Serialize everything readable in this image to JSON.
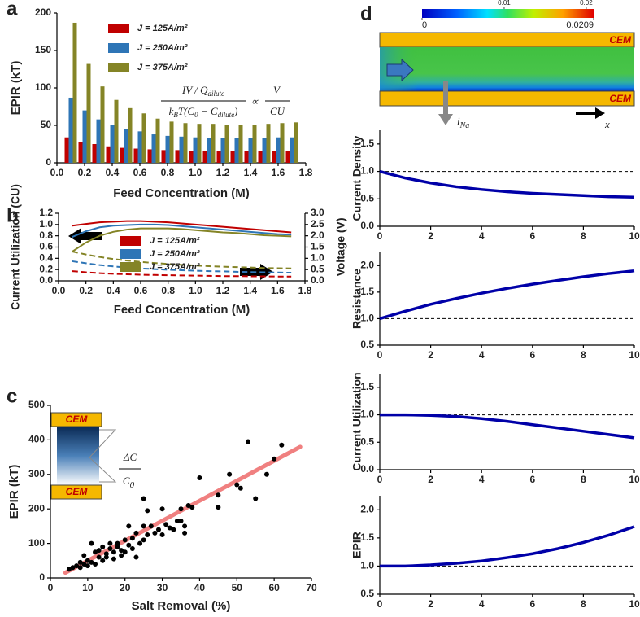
{
  "chart_data": [
    {
      "type": "bar",
      "label": "a",
      "ylabel": "EPIR (kT)",
      "xlabel": "Feed Concentration (M)",
      "x": [
        0.1,
        0.2,
        0.3,
        0.4,
        0.5,
        0.6,
        0.7,
        0.8,
        0.9,
        1.0,
        1.1,
        1.2,
        1.3,
        1.4,
        1.5,
        1.6,
        1.7
      ],
      "xlim": [
        0,
        1.8
      ],
      "xticks": [
        {
          "value": 0,
          "label": "0.0"
        },
        0.2,
        0.4,
        0.6,
        0.8,
        {
          "value": 1,
          "label": "1.0"
        },
        1.2,
        1.4,
        1.6,
        1.8
      ],
      "ylim": [
        0,
        200
      ],
      "yticks": [
        0,
        50,
        100,
        150,
        200
      ],
      "legend": "upper right",
      "series": [
        {
          "name": "J = 125A/m²",
          "color": "#c00000",
          "values": [
            34,
            28,
            25,
            22,
            20,
            19,
            18,
            17,
            17,
            16,
            16,
            16,
            16,
            16,
            16,
            16,
            16
          ]
        },
        {
          "name": "J = 250A/m²",
          "color": "#2e75b6",
          "values": [
            87,
            70,
            58,
            50,
            45,
            42,
            38,
            36,
            35,
            34,
            33,
            33,
            33,
            33,
            33,
            34,
            34
          ]
        },
        {
          "name": "J = 375A/m²",
          "color": "#848426",
          "values": [
            187,
            132,
            102,
            84,
            73,
            66,
            59,
            55,
            53,
            52,
            52,
            51,
            51,
            51,
            52,
            53,
            54
          ]
        }
      ],
      "equation": {
        "num": "IV / Q",
        "num_sub": "dilute",
        "den_k": "k",
        "den_k_sub": "B",
        "den_mid": "T(C",
        "den_c0_sub": "0",
        "den_minus": " − C",
        "den_cd_sub": "dilute",
        "den_close": ")",
        "prop": "∝",
        "rhs_num": "V",
        "rhs_den": "CU"
      }
    },
    {
      "type": "line",
      "label": "b",
      "ylabel": "Current Utilization (CU)",
      "y2label": "Voltage (V)",
      "xlabel": "Feed Concentration (M)",
      "x": [
        0.1,
        0.2,
        0.3,
        0.4,
        0.5,
        0.6,
        0.7,
        0.8,
        0.9,
        1.0,
        1.1,
        1.2,
        1.3,
        1.4,
        1.5,
        1.6,
        1.7
      ],
      "xlim": [
        0,
        1.8
      ],
      "xticks": [
        {
          "value": 0,
          "label": "0.0"
        },
        0.2,
        0.4,
        0.6,
        0.8,
        {
          "value": 1,
          "label": "1.0"
        },
        1.2,
        1.4,
        1.6,
        1.8
      ],
      "ylim": [
        0,
        1.2
      ],
      "yticks": [
        {
          "value": 0,
          "label": "0.0"
        },
        0.2,
        0.4,
        0.6,
        0.8,
        {
          "value": 1,
          "label": "1.0"
        },
        1.2
      ],
      "y2lim": [
        0,
        3
      ],
      "y2ticks": [
        {
          "value": 0,
          "label": "0.0"
        },
        0.5,
        {
          "value": 1,
          "label": "1.0"
        },
        1.5,
        {
          "value": 2,
          "label": "2.0"
        },
        2.5,
        {
          "value": 3,
          "label": "3.0"
        }
      ],
      "series": [
        {
          "name": "J = 125A/m²",
          "color": "#c00000",
          "values": [
            0.98,
            1.01,
            1.04,
            1.05,
            1.06,
            1.06,
            1.05,
            1.04,
            1.02,
            1.0,
            0.98,
            0.96,
            0.94,
            0.92,
            0.9,
            0.88,
            0.86
          ]
        },
        {
          "name": "J = 250A/m²",
          "color": "#2e75b6",
          "values": [
            0.78,
            0.88,
            0.95,
            0.98,
            0.99,
            1.0,
            1.0,
            0.99,
            0.97,
            0.95,
            0.93,
            0.91,
            0.89,
            0.87,
            0.85,
            0.83,
            0.82
          ]
        },
        {
          "name": "J = 375A/m²",
          "color": "#848426",
          "values": [
            0.52,
            0.68,
            0.8,
            0.87,
            0.91,
            0.93,
            0.93,
            0.93,
            0.92,
            0.9,
            0.88,
            0.86,
            0.85,
            0.83,
            0.81,
            0.8,
            0.79
          ]
        },
        {
          "color": "#c00000",
          "dash": true,
          "axis": "y2",
          "values": [
            0.43,
            0.38,
            0.34,
            0.31,
            0.29,
            0.27,
            0.26,
            0.25,
            0.24,
            0.23,
            0.22,
            0.21,
            0.21,
            0.2,
            0.2,
            0.19,
            0.19
          ]
        },
        {
          "color": "#2e75b6",
          "dash": true,
          "axis": "y2",
          "values": [
            0.87,
            0.78,
            0.7,
            0.64,
            0.59,
            0.55,
            0.52,
            0.49,
            0.47,
            0.45,
            0.43,
            0.42,
            0.4,
            0.39,
            0.38,
            0.37,
            0.36
          ]
        },
        {
          "color": "#848426",
          "dash": true,
          "axis": "y2",
          "values": [
            1.3,
            1.17,
            1.06,
            0.97,
            0.9,
            0.84,
            0.79,
            0.75,
            0.71,
            0.68,
            0.65,
            0.63,
            0.61,
            0.59,
            0.57,
            0.56,
            0.55
          ]
        }
      ]
    },
    {
      "type": "scatter",
      "label": "c",
      "ylabel": "EPIR (kT)",
      "xlabel": "Salt Removal (%)",
      "xlim": [
        0,
        70
      ],
      "xticks": [
        0,
        10,
        20,
        30,
        40,
        50,
        60,
        70
      ],
      "ylim": [
        0,
        500
      ],
      "yticks": [
        0,
        100,
        200,
        300,
        400,
        500
      ],
      "color": "#000000",
      "x": [
        5,
        6,
        7,
        8,
        8,
        9,
        9,
        10,
        10,
        11,
        11,
        12,
        12,
        13,
        13,
        14,
        14,
        15,
        15,
        16,
        16,
        17,
        17,
        18,
        18,
        19,
        19,
        20,
        20,
        21,
        21,
        22,
        22,
        23,
        23,
        24,
        25,
        25,
        25,
        26,
        26,
        27,
        28,
        29,
        30,
        30,
        31,
        32,
        33,
        34,
        35,
        35,
        36,
        36,
        37,
        38,
        40,
        45,
        45,
        48,
        50,
        51,
        53,
        55,
        58,
        60,
        62
      ],
      "values": [
        25,
        30,
        35,
        30,
        45,
        40,
        65,
        50,
        35,
        45,
        100,
        40,
        75,
        60,
        80,
        50,
        90,
        70,
        60,
        100,
        85,
        55,
        75,
        100,
        90,
        65,
        80,
        110,
        75,
        150,
        95,
        85,
        115,
        130,
        60,
        100,
        110,
        150,
        230,
        125,
        195,
        150,
        130,
        140,
        125,
        200,
        155,
        145,
        140,
        165,
        165,
        200,
        150,
        130,
        210,
        205,
        290,
        205,
        240,
        300,
        270,
        260,
        395,
        230,
        300,
        345,
        385
      ],
      "fit": {
        "color": "#f08080",
        "x": [
          4,
          67
        ],
        "values": [
          15,
          380
        ]
      },
      "inset": {
        "membranes": [
          "CEM",
          "CEM"
        ],
        "num": "ΔC",
        "den": "C",
        "den_sub": "0"
      }
    },
    {
      "type": "heatmap",
      "label": "d",
      "clim": [
        0,
        0.0209
      ],
      "cticks": [
        0.01,
        0.02
      ],
      "membranes": [
        "CEM",
        "CEM"
      ],
      "current_label": "i",
      "current_sub": "Na+",
      "axis_label": "x"
    },
    {
      "type": "line",
      "ylabel": "Current Density",
      "x": [
        0,
        1,
        2,
        3,
        4,
        5,
        6,
        7,
        8,
        9,
        10
      ],
      "xlim": [
        0,
        10
      ],
      "xticks": [
        0,
        2,
        4,
        6,
        8,
        10
      ],
      "ylim": [
        0,
        1.75
      ],
      "yticks": [
        {
          "value": 0,
          "label": "0.0"
        },
        0.5,
        {
          "value": 1,
          "label": "1.0"
        },
        1.5
      ],
      "reference": 1,
      "series": [
        {
          "color": "#0000a8",
          "values": [
            1.0,
            0.88,
            0.79,
            0.72,
            0.67,
            0.63,
            0.6,
            0.58,
            0.56,
            0.54,
            0.53
          ]
        }
      ]
    },
    {
      "type": "line",
      "ylabel": "Resistance",
      "x": [
        0,
        1,
        2,
        3,
        4,
        5,
        6,
        7,
        8,
        9,
        10
      ],
      "xlim": [
        0,
        10
      ],
      "xticks": [
        0,
        2,
        4,
        6,
        8,
        10
      ],
      "ylim": [
        0.5,
        2.25
      ],
      "yticks": [
        0.5,
        {
          "value": 1,
          "label": "1.0"
        },
        1.5,
        {
          "value": 2,
          "label": "2.0"
        }
      ],
      "reference": 1,
      "series": [
        {
          "color": "#0000a8",
          "values": [
            1.0,
            1.14,
            1.27,
            1.38,
            1.48,
            1.57,
            1.65,
            1.72,
            1.79,
            1.85,
            1.9
          ]
        }
      ]
    },
    {
      "type": "line",
      "ylabel": "Current Utilization",
      "x": [
        0,
        1,
        2,
        3,
        4,
        5,
        6,
        7,
        8,
        9,
        10
      ],
      "xlim": [
        0,
        10
      ],
      "xticks": [
        0,
        2,
        4,
        6,
        8,
        10
      ],
      "ylim": [
        0,
        1.75
      ],
      "yticks": [
        {
          "value": 0,
          "label": "0.0"
        },
        0.5,
        {
          "value": 1,
          "label": "1.0"
        },
        1.5
      ],
      "reference": 1,
      "series": [
        {
          "color": "#0000a8",
          "values": [
            1.0,
            1.0,
            0.99,
            0.97,
            0.93,
            0.88,
            0.82,
            0.76,
            0.7,
            0.64,
            0.58
          ]
        }
      ]
    },
    {
      "type": "line",
      "ylabel": "EPIR",
      "x": [
        0,
        1,
        2,
        3,
        4,
        5,
        6,
        7,
        8,
        9,
        10
      ],
      "xlim": [
        0,
        10
      ],
      "xticks": [
        0,
        2,
        4,
        6,
        8,
        10
      ],
      "ylim": [
        0.5,
        2.25
      ],
      "yticks": [
        0.5,
        {
          "value": 1,
          "label": "1.0"
        },
        1.5,
        {
          "value": 2,
          "label": "2.0"
        }
      ],
      "reference": 1,
      "series": [
        {
          "color": "#0000a8",
          "values": [
            1.0,
            1.0,
            1.02,
            1.05,
            1.09,
            1.15,
            1.22,
            1.31,
            1.42,
            1.55,
            1.7
          ]
        }
      ]
    }
  ]
}
